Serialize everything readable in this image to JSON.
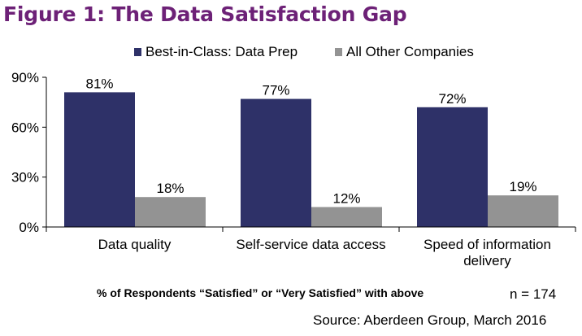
{
  "figure_title": "Figure 1: The Data Satisfaction Gap",
  "footnote": "% of Respondents “Satisfied” or “Very Satisfied” with above",
  "sample_size": "n = 174",
  "source": "Source: Aberdeen Group, March 2016",
  "chart_data": {
    "type": "bar",
    "title": "",
    "xlabel": "",
    "ylabel": "",
    "categories": [
      [
        "Data quality"
      ],
      [
        "Self-service data access"
      ],
      [
        "Speed of information",
        "delivery"
      ]
    ],
    "series": [
      {
        "name": "Best-in-Class: Data Prep",
        "color": "#2e3168",
        "values": [
          81,
          77,
          72
        ],
        "labels": [
          "81%",
          "77%",
          "72%"
        ]
      },
      {
        "name": "All Other Companies",
        "color": "#939393",
        "values": [
          18,
          12,
          19
        ],
        "labels": [
          "18%",
          "12%",
          "19%"
        ]
      }
    ],
    "ylim": [
      0,
      90
    ],
    "yticks": [
      0,
      30,
      60,
      90
    ],
    "ytick_labels": [
      "0%",
      "30%",
      "60%",
      "90%"
    ],
    "legend_position": "top-center",
    "grid": false
  }
}
